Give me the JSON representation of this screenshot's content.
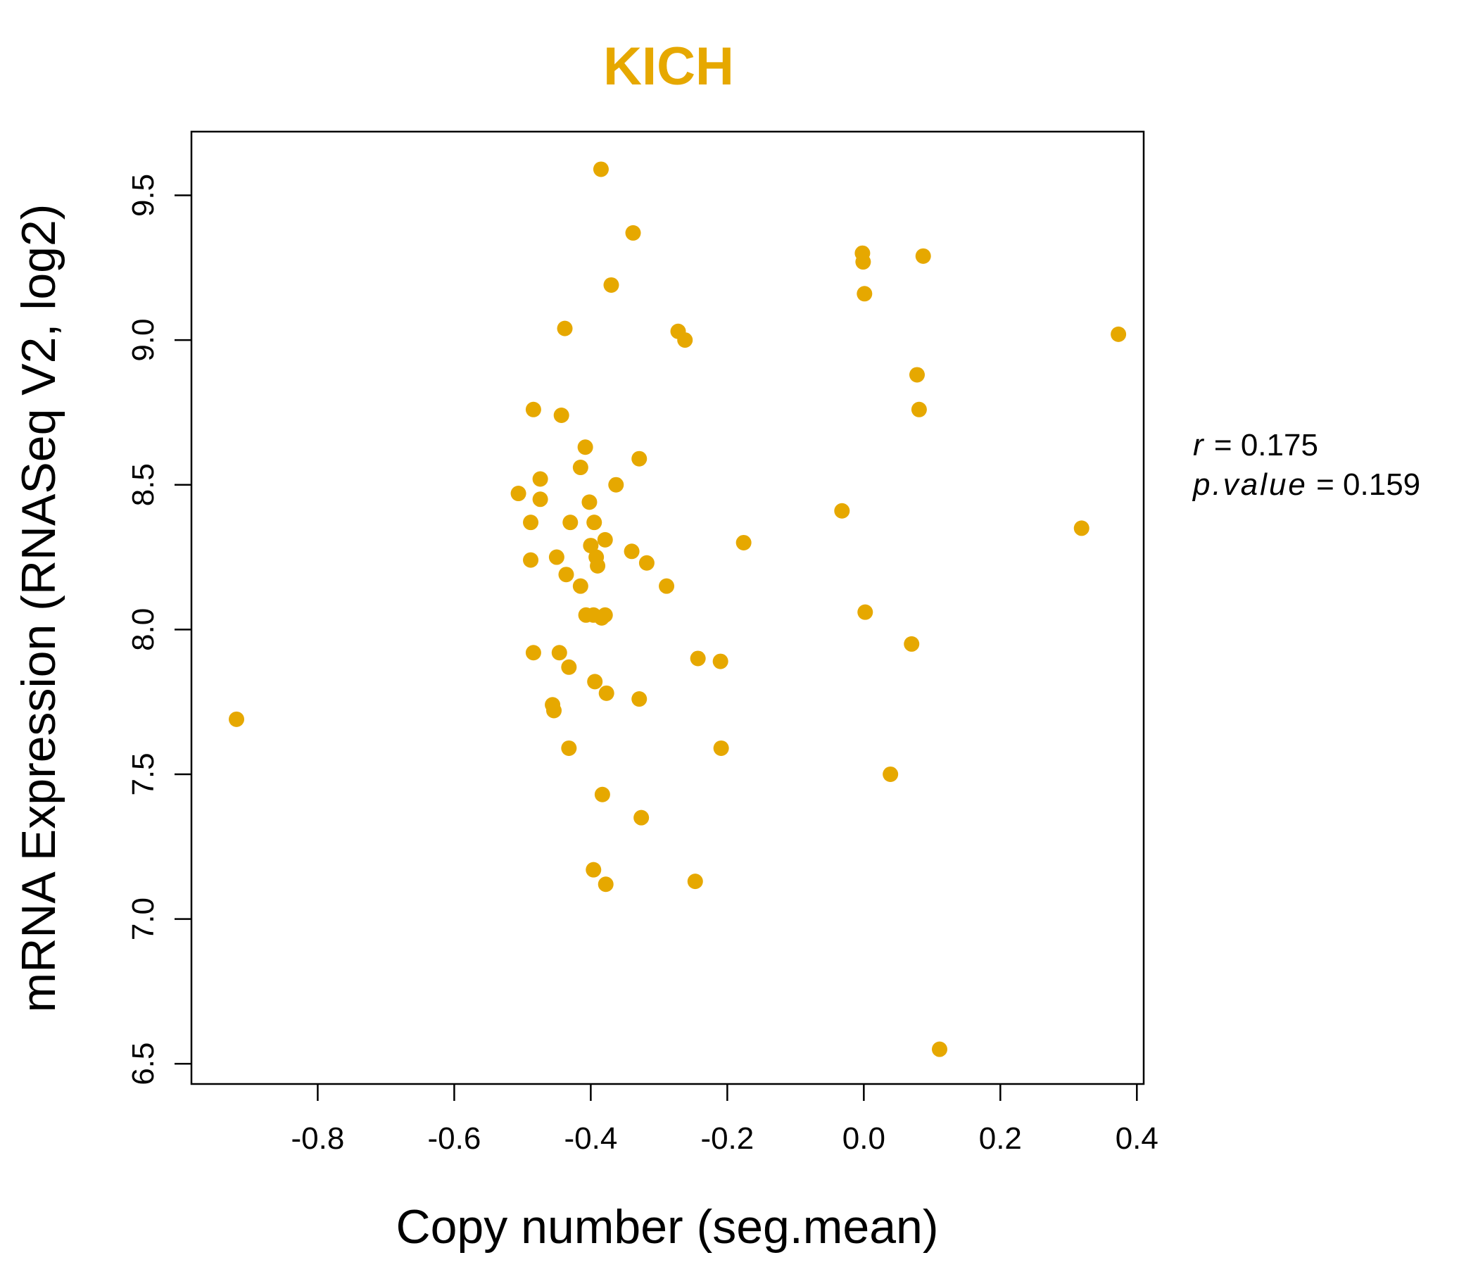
{
  "chart_data": {
    "type": "scatter",
    "title": "KICH",
    "xlabel": "Copy number (seg.mean)",
    "ylabel": "mRNA Expression (RNASeq V2, log2)",
    "xlim": [
      -0.985,
      0.41
    ],
    "ylim": [
      6.43,
      9.72
    ],
    "xticks": [
      -0.8,
      -0.6,
      -0.4,
      -0.2,
      0.0,
      0.2,
      0.4
    ],
    "xtick_labels": [
      "-0.8",
      "-0.6",
      "-0.4",
      "-0.2",
      "0.0",
      "0.2",
      "0.4"
    ],
    "yticks": [
      6.5,
      7.0,
      7.5,
      8.0,
      8.5,
      9.0,
      9.5
    ],
    "ytick_labels": [
      "6.5",
      "7.0",
      "7.5",
      "8.0",
      "8.5",
      "9.0",
      "9.5"
    ],
    "color": "#E6A800",
    "grid": false,
    "annotation": {
      "r_label": "r",
      "r_value": "0.175",
      "p_label": "p.value",
      "p_value": "0.159"
    },
    "points": [
      {
        "x": -0.385,
        "y": 9.59
      },
      {
        "x": -0.338,
        "y": 9.37
      },
      {
        "x": -0.37,
        "y": 9.19
      },
      {
        "x": -0.438,
        "y": 9.04
      },
      {
        "x": -0.272,
        "y": 9.03
      },
      {
        "x": -0.262,
        "y": 9.0
      },
      {
        "x": -0.002,
        "y": 9.3
      },
      {
        "x": -0.001,
        "y": 9.27
      },
      {
        "x": 0.001,
        "y": 9.16
      },
      {
        "x": 0.087,
        "y": 9.29
      },
      {
        "x": 0.373,
        "y": 9.02
      },
      {
        "x": 0.078,
        "y": 8.88
      },
      {
        "x": 0.081,
        "y": 8.76
      },
      {
        "x": -0.484,
        "y": 8.76
      },
      {
        "x": -0.443,
        "y": 8.74
      },
      {
        "x": -0.408,
        "y": 8.63
      },
      {
        "x": -0.329,
        "y": 8.59
      },
      {
        "x": -0.415,
        "y": 8.56
      },
      {
        "x": -0.474,
        "y": 8.52
      },
      {
        "x": -0.363,
        "y": 8.5
      },
      {
        "x": -0.506,
        "y": 8.47
      },
      {
        "x": -0.474,
        "y": 8.45
      },
      {
        "x": -0.402,
        "y": 8.44
      },
      {
        "x": -0.032,
        "y": 8.41
      },
      {
        "x": -0.488,
        "y": 8.37
      },
      {
        "x": -0.43,
        "y": 8.37
      },
      {
        "x": -0.395,
        "y": 8.37
      },
      {
        "x": 0.319,
        "y": 8.35
      },
      {
        "x": -0.379,
        "y": 8.31
      },
      {
        "x": -0.176,
        "y": 8.3
      },
      {
        "x": -0.4,
        "y": 8.29
      },
      {
        "x": -0.34,
        "y": 8.27
      },
      {
        "x": -0.45,
        "y": 8.25
      },
      {
        "x": -0.392,
        "y": 8.25
      },
      {
        "x": -0.488,
        "y": 8.24
      },
      {
        "x": -0.318,
        "y": 8.23
      },
      {
        "x": -0.39,
        "y": 8.22
      },
      {
        "x": -0.436,
        "y": 8.19
      },
      {
        "x": -0.415,
        "y": 8.15
      },
      {
        "x": -0.289,
        "y": 8.15
      },
      {
        "x": 0.002,
        "y": 8.06
      },
      {
        "x": -0.407,
        "y": 8.05
      },
      {
        "x": -0.396,
        "y": 8.05
      },
      {
        "x": -0.384,
        "y": 8.04
      },
      {
        "x": -0.379,
        "y": 8.05
      },
      {
        "x": 0.07,
        "y": 7.95
      },
      {
        "x": -0.484,
        "y": 7.92
      },
      {
        "x": -0.446,
        "y": 7.92
      },
      {
        "x": -0.243,
        "y": 7.9
      },
      {
        "x": -0.21,
        "y": 7.89
      },
      {
        "x": -0.432,
        "y": 7.87
      },
      {
        "x": -0.394,
        "y": 7.82
      },
      {
        "x": -0.377,
        "y": 7.78
      },
      {
        "x": -0.329,
        "y": 7.76
      },
      {
        "x": -0.456,
        "y": 7.74
      },
      {
        "x": -0.454,
        "y": 7.72
      },
      {
        "x": -0.919,
        "y": 7.69
      },
      {
        "x": -0.432,
        "y": 7.59
      },
      {
        "x": -0.209,
        "y": 7.59
      },
      {
        "x": 0.039,
        "y": 7.5
      },
      {
        "x": -0.383,
        "y": 7.43
      },
      {
        "x": -0.326,
        "y": 7.35
      },
      {
        "x": -0.396,
        "y": 7.17
      },
      {
        "x": -0.378,
        "y": 7.12
      },
      {
        "x": -0.247,
        "y": 7.13
      },
      {
        "x": 0.111,
        "y": 6.55
      }
    ]
  }
}
